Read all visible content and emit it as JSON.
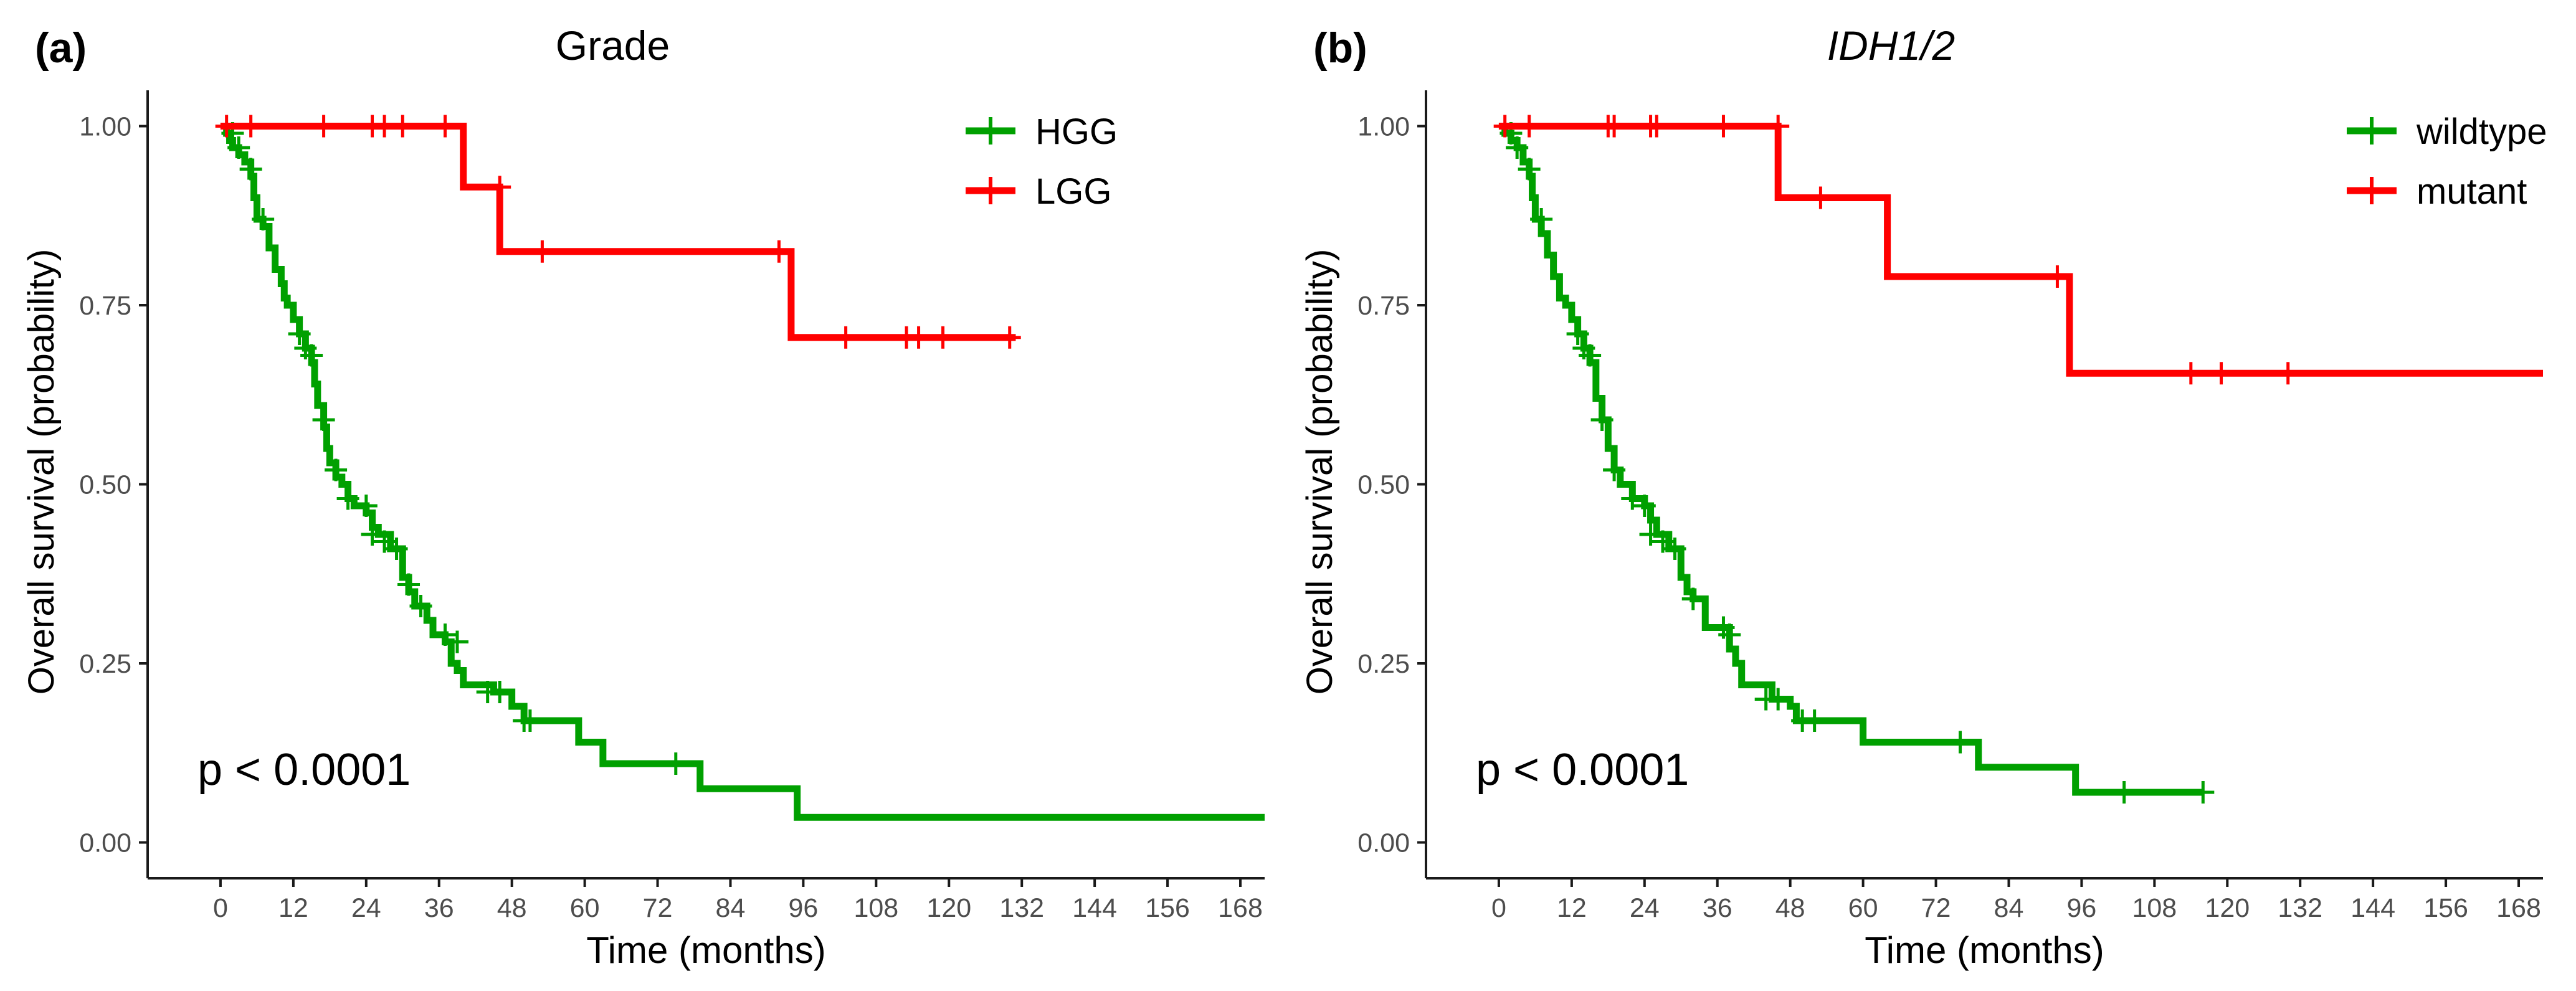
{
  "colors": {
    "green": "#00A000",
    "red": "#FF0000",
    "axis": "#1a1a1a",
    "tick_text": "#4d4d4d"
  },
  "chart_data": [
    {
      "type": "line",
      "panel_label": "(a)",
      "title": "Grade",
      "title_italic": false,
      "xlabel": "Time (months)",
      "ylabel": "Overall survival (probability)",
      "xlim": [
        -12,
        172
      ],
      "ylim": [
        -0.05,
        1.05
      ],
      "x_ticks": [
        0,
        12,
        24,
        36,
        48,
        60,
        72,
        84,
        96,
        108,
        120,
        132,
        144,
        156,
        168
      ],
      "y_ticks": [
        0.0,
        0.25,
        0.5,
        0.75,
        1.0
      ],
      "y_tick_labels": [
        "0.00",
        "0.25",
        "0.50",
        "0.75",
        "1.00"
      ],
      "annotation": "p < 0.0001",
      "legend_position": "top-right",
      "series": [
        {
          "name": "HGG",
          "color": "#00A000",
          "steps": [
            [
              0,
              1.0
            ],
            [
              1,
              0.99
            ],
            [
              1.5,
              0.98
            ],
            [
              2,
              0.97
            ],
            [
              3,
              0.96
            ],
            [
              4,
              0.95
            ],
            [
              5,
              0.93
            ],
            [
              5.5,
              0.9
            ],
            [
              6,
              0.87
            ],
            [
              7,
              0.86
            ],
            [
              8,
              0.83
            ],
            [
              9,
              0.8
            ],
            [
              10,
              0.78
            ],
            [
              10.5,
              0.76
            ],
            [
              11,
              0.75
            ],
            [
              12,
              0.73
            ],
            [
              13,
              0.71
            ],
            [
              14,
              0.69
            ],
            [
              15,
              0.67
            ],
            [
              15.5,
              0.64
            ],
            [
              16,
              0.61
            ],
            [
              17,
              0.58
            ],
            [
              17.5,
              0.55
            ],
            [
              18,
              0.53
            ],
            [
              19,
              0.51
            ],
            [
              20,
              0.5
            ],
            [
              21,
              0.48
            ],
            [
              22,
              0.47
            ],
            [
              24,
              0.46
            ],
            [
              25,
              0.44
            ],
            [
              26,
              0.43
            ],
            [
              28,
              0.41
            ],
            [
              30,
              0.37
            ],
            [
              31,
              0.35
            ],
            [
              32,
              0.33
            ],
            [
              34,
              0.31
            ],
            [
              35,
              0.29
            ],
            [
              37,
              0.28
            ],
            [
              38,
              0.25
            ],
            [
              39,
              0.24
            ],
            [
              40,
              0.22
            ],
            [
              44,
              0.22
            ],
            [
              45,
              0.21
            ],
            [
              48,
              0.19
            ],
            [
              50,
              0.17
            ],
            [
              58,
              0.17
            ],
            [
              59,
              0.14
            ],
            [
              63,
              0.11
            ],
            [
              79,
              0.075
            ],
            [
              95,
              0.035
            ],
            [
              172,
              0.035
            ]
          ],
          "censor_marks": [
            [
              2,
              0.99
            ],
            [
              3,
              0.97
            ],
            [
              5,
              0.94
            ],
            [
              7,
              0.87
            ],
            [
              13,
              0.71
            ],
            [
              14,
              0.69
            ],
            [
              15,
              0.68
            ],
            [
              17,
              0.59
            ],
            [
              19,
              0.52
            ],
            [
              21,
              0.48
            ],
            [
              24,
              0.47
            ],
            [
              25,
              0.43
            ],
            [
              27,
              0.42
            ],
            [
              29,
              0.41
            ],
            [
              31,
              0.36
            ],
            [
              33,
              0.33
            ],
            [
              37,
              0.29
            ],
            [
              39,
              0.28
            ],
            [
              44,
              0.21
            ],
            [
              46,
              0.21
            ],
            [
              50,
              0.17
            ],
            [
              51,
              0.17
            ],
            [
              75,
              0.11
            ]
          ]
        },
        {
          "name": "LGG",
          "color": "#FF0000",
          "steps": [
            [
              0,
              1.0
            ],
            [
              40,
              0.915
            ],
            [
              46,
              0.825
            ],
            [
              94,
              0.705
            ],
            [
              131,
              0.705
            ]
          ],
          "censor_marks": [
            [
              1,
              1.0
            ],
            [
              5,
              1.0
            ],
            [
              17,
              1.0
            ],
            [
              25,
              1.0
            ],
            [
              27,
              1.0
            ],
            [
              30,
              1.0
            ],
            [
              37,
              1.0
            ],
            [
              46,
              0.915
            ],
            [
              53,
              0.825
            ],
            [
              92,
              0.825
            ],
            [
              103,
              0.705
            ],
            [
              113,
              0.705
            ],
            [
              115,
              0.705
            ],
            [
              119,
              0.705
            ],
            [
              130,
              0.705
            ]
          ]
        }
      ]
    },
    {
      "type": "line",
      "panel_label": "(b)",
      "title": "IDH1/2",
      "title_italic": true,
      "xlabel": "Time (months)",
      "ylabel": "Overall survival (probability)",
      "xlim": [
        -12,
        172
      ],
      "ylim": [
        -0.05,
        1.05
      ],
      "x_ticks": [
        0,
        12,
        24,
        36,
        48,
        60,
        72,
        84,
        96,
        108,
        120,
        132,
        144,
        156,
        168
      ],
      "y_ticks": [
        0.0,
        0.25,
        0.5,
        0.75,
        1.0
      ],
      "y_tick_labels": [
        "0.00",
        "0.25",
        "0.50",
        "0.75",
        "1.00"
      ],
      "annotation": "p < 0.0001",
      "legend_position": "top-right",
      "series": [
        {
          "name": "wildtype",
          "color": "#00A000",
          "steps": [
            [
              0,
              1.0
            ],
            [
              1,
              0.99
            ],
            [
              2,
              0.98
            ],
            [
              3,
              0.97
            ],
            [
              4,
              0.95
            ],
            [
              5,
              0.93
            ],
            [
              5.5,
              0.9
            ],
            [
              6,
              0.87
            ],
            [
              7,
              0.85
            ],
            [
              8,
              0.82
            ],
            [
              9,
              0.79
            ],
            [
              10,
              0.76
            ],
            [
              11,
              0.75
            ],
            [
              12,
              0.73
            ],
            [
              13,
              0.71
            ],
            [
              14,
              0.69
            ],
            [
              15,
              0.67
            ],
            [
              16,
              0.62
            ],
            [
              17,
              0.59
            ],
            [
              18,
              0.55
            ],
            [
              19,
              0.52
            ],
            [
              20,
              0.5
            ],
            [
              22,
              0.48
            ],
            [
              24,
              0.47
            ],
            [
              25,
              0.45
            ],
            [
              26,
              0.43
            ],
            [
              28,
              0.41
            ],
            [
              30,
              0.37
            ],
            [
              31,
              0.35
            ],
            [
              32,
              0.34
            ],
            [
              34,
              0.3
            ],
            [
              37,
              0.3
            ],
            [
              38,
              0.27
            ],
            [
              39,
              0.25
            ],
            [
              40,
              0.22
            ],
            [
              44,
              0.22
            ],
            [
              45,
              0.2
            ],
            [
              48,
              0.19
            ],
            [
              49,
              0.17
            ],
            [
              59,
              0.17
            ],
            [
              60,
              0.14
            ],
            [
              78,
              0.14
            ],
            [
              79,
              0.105
            ],
            [
              94,
              0.105
            ],
            [
              95,
              0.07
            ],
            [
              116,
              0.07
            ]
          ],
          "censor_marks": [
            [
              2,
              0.99
            ],
            [
              3,
              0.97
            ],
            [
              5,
              0.94
            ],
            [
              7,
              0.87
            ],
            [
              13,
              0.71
            ],
            [
              14,
              0.69
            ],
            [
              15,
              0.68
            ],
            [
              17,
              0.59
            ],
            [
              19,
              0.52
            ],
            [
              22,
              0.48
            ],
            [
              24,
              0.47
            ],
            [
              25,
              0.43
            ],
            [
              27,
              0.42
            ],
            [
              29,
              0.41
            ],
            [
              32,
              0.34
            ],
            [
              37,
              0.3
            ],
            [
              38,
              0.29
            ],
            [
              44,
              0.2
            ],
            [
              46,
              0.2
            ],
            [
              50,
              0.17
            ],
            [
              52,
              0.17
            ],
            [
              76,
              0.14
            ],
            [
              103,
              0.07
            ],
            [
              116,
              0.07
            ]
          ]
        },
        {
          "name": "mutant",
          "color": "#FF0000",
          "steps": [
            [
              0,
              1.0
            ],
            [
              46,
              0.9
            ],
            [
              64,
              0.79
            ],
            [
              94,
              0.655
            ],
            [
              172,
              0.655
            ]
          ],
          "censor_marks": [
            [
              1,
              1.0
            ],
            [
              5,
              1.0
            ],
            [
              18,
              1.0
            ],
            [
              19,
              1.0
            ],
            [
              25,
              1.0
            ],
            [
              26,
              1.0
            ],
            [
              37,
              1.0
            ],
            [
              46,
              1.0
            ],
            [
              53,
              0.9
            ],
            [
              92,
              0.79
            ],
            [
              114,
              0.655
            ],
            [
              119,
              0.655
            ],
            [
              130,
              0.655
            ]
          ]
        }
      ]
    }
  ]
}
